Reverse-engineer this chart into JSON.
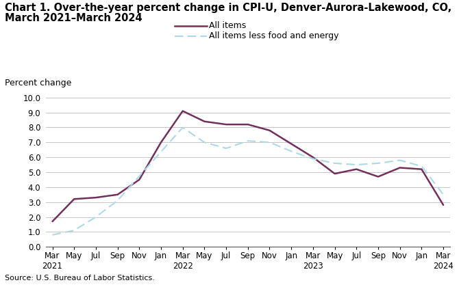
{
  "title_line1": "Chart 1. Over-the-year percent change in CPI-U, Denver-Aurora-Lakewood, CO,",
  "title_line2": "March 2021–March 2024",
  "ylabel": "Percent change",
  "source": "Source: U.S. Bureau of Labor Statistics.",
  "ylim": [
    0.0,
    10.0
  ],
  "yticks": [
    0.0,
    1.0,
    2.0,
    3.0,
    4.0,
    5.0,
    6.0,
    7.0,
    8.0,
    9.0,
    10.0
  ],
  "x_labels": [
    "Mar\n2021",
    "May",
    "Jul",
    "Sep",
    "Nov",
    "Jan",
    "Mar\n2022",
    "May",
    "Jul",
    "Sep",
    "Nov",
    "Jan",
    "Mar\n2023",
    "May",
    "Jul",
    "Sep",
    "Nov",
    "Jan",
    "Mar\n2024"
  ],
  "all_items": [
    1.7,
    3.2,
    3.3,
    3.5,
    4.5,
    7.0,
    9.1,
    8.4,
    8.2,
    8.2,
    7.8,
    6.9,
    6.0,
    4.9,
    5.2,
    4.7,
    5.3,
    5.2,
    2.8
  ],
  "all_items_less": [
    0.8,
    1.1,
    2.0,
    3.1,
    null,
    null,
    8.0,
    7.0,
    6.6,
    7.1,
    7.0,
    6.4,
    5.9,
    5.6,
    5.5,
    5.6,
    5.8,
    5.4,
    3.5
  ],
  "all_items_color": "#722F5B",
  "all_items_less_color": "#ADD8E6",
  "legend_all_items": "All items",
  "legend_all_items_less": "All items less food and energy",
  "background_color": "#ffffff",
  "grid_color": "#bbbbbb",
  "title_fontsize": 10.5,
  "label_fontsize": 9,
  "tick_fontsize": 8.5,
  "source_fontsize": 8
}
